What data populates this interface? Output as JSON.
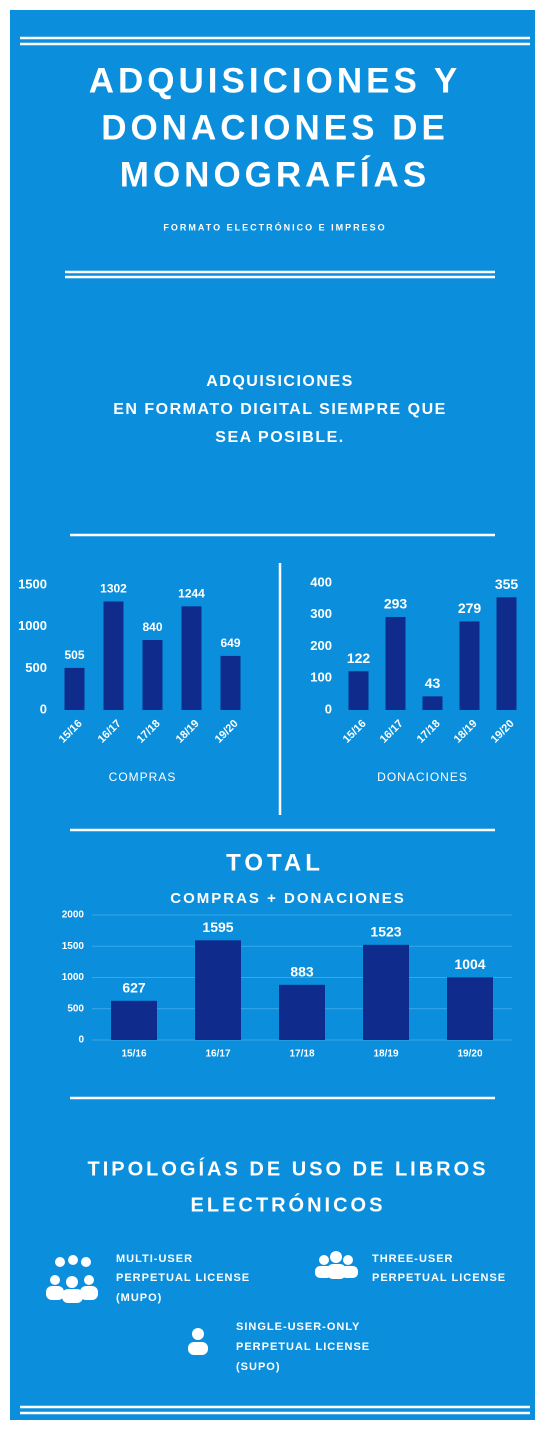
{
  "header": {
    "title_lines": [
      "ADQUISICIONES Y",
      "DONACIONES DE",
      "MONOGRAFÍAS"
    ],
    "subtitle": "FORMATO ELECTRÓNICO E IMPRESO"
  },
  "section": {
    "lines": [
      "ADQUISICIONES",
      "EN FORMATO DIGITAL SIEMPRE QUE",
      "SEA POSIBLE."
    ]
  },
  "chart_data": [
    {
      "type": "bar",
      "xlabel": "COMPRAS",
      "categories": [
        "15/16",
        "16/17",
        "17/18",
        "18/19",
        "19/20"
      ],
      "values": [
        505,
        1302,
        840,
        1244,
        649
      ],
      "color": "#0f2b8c",
      "ylim": [
        0,
        1500
      ],
      "yticks": [
        0,
        500,
        1000,
        1500
      ],
      "grid": false
    },
    {
      "type": "bar",
      "xlabel": "DONACIONES",
      "categories": [
        "15/16",
        "16/17",
        "17/18",
        "18/19",
        "19/20"
      ],
      "values": [
        122,
        293,
        43,
        279,
        355
      ],
      "color": "#0f2b8c",
      "ylim": [
        0,
        400
      ],
      "yticks": [
        0,
        100,
        200,
        300,
        400
      ],
      "grid": false
    },
    {
      "type": "bar",
      "title": "TOTAL",
      "subtitle": "COMPRAS + DONACIONES",
      "categories": [
        "15/16",
        "16/17",
        "17/18",
        "18/19",
        "19/20"
      ],
      "values": [
        627,
        1595,
        883,
        1523,
        1004
      ],
      "color": "#0f2b8c",
      "ylim": [
        0,
        2000
      ],
      "yticks": [
        0,
        500,
        1000,
        1500,
        2000
      ],
      "grid": true
    }
  ],
  "typologies": {
    "title_lines": [
      "TIPOLOGÍAS DE USO DE LIBROS",
      "ELECTRÓNICOS"
    ],
    "items": [
      {
        "lines": [
          "MULTI-USER",
          "PERPETUAL LICENSE",
          "(MUPO)"
        ]
      },
      {
        "lines": [
          "THREE-USER",
          "PERPETUAL LICENSE"
        ]
      },
      {
        "lines": [
          "SINGLE-USER-ONLY",
          "PERPETUAL LICENSE",
          "(SUPO)"
        ]
      }
    ]
  }
}
